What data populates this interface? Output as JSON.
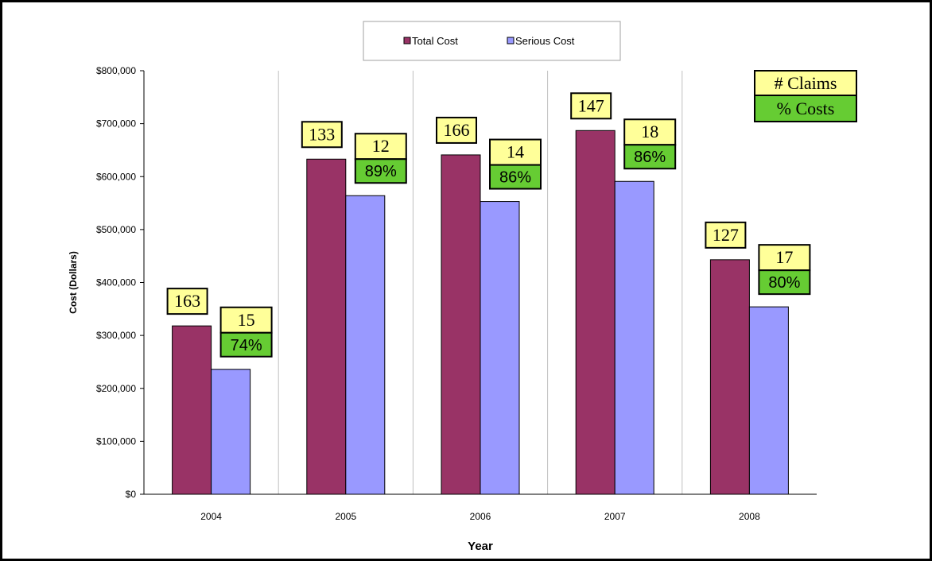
{
  "chart_data": {
    "type": "bar",
    "categories": [
      "2004",
      "2005",
      "2006",
      "2007",
      "2008"
    ],
    "series": [
      {
        "name": "Total Cost",
        "values": [
          318000,
          633000,
          641000,
          687000,
          443000
        ],
        "color": "#993366"
      },
      {
        "name": "Serious Cost",
        "values": [
          236000,
          564000,
          553000,
          591000,
          354000
        ],
        "color": "#9999ff"
      }
    ],
    "xlabel": "Year",
    "ylabel": "Cost (Dollars)",
    "ylim": [
      0,
      800000
    ],
    "ytick_values": [
      0,
      100000,
      200000,
      300000,
      400000,
      500000,
      600000,
      700000,
      800000
    ],
    "ytick_labels": [
      "$0",
      "$100,000",
      "$200,000",
      "$300,000",
      "$400,000",
      "$500,000",
      "$600,000",
      "$700,000",
      "$800,000"
    ],
    "grid": "vertical-category-separators",
    "legend_position": "top-center",
    "annotations": {
      "total_claims": [
        "163",
        "133",
        "166",
        "147",
        "127"
      ],
      "serious_claims": [
        "15",
        "12",
        "14",
        "18",
        "17"
      ],
      "serious_cost_pct": [
        "74%",
        "89%",
        "86%",
        "86%",
        "80%"
      ]
    },
    "key": {
      "claims_label": "# Claims",
      "costs_label": "% Costs"
    },
    "colors": {
      "claims_box": "#ffff99",
      "costs_box": "#66cc33"
    }
  }
}
